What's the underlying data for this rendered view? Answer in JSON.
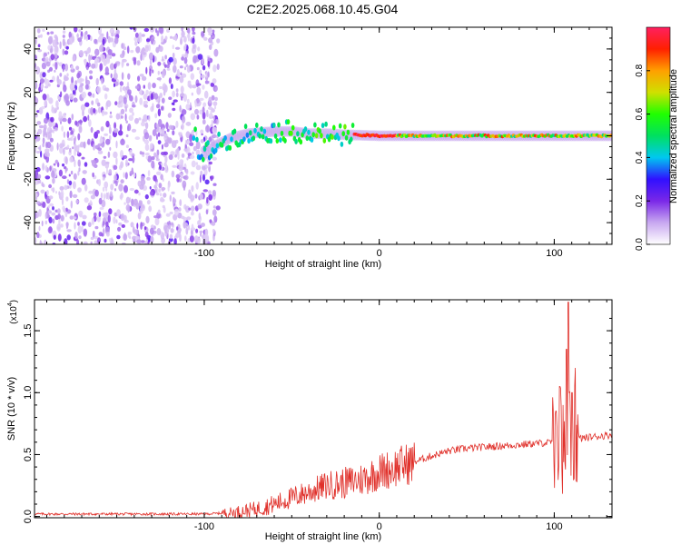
{
  "title": "C2E2.2025.068.10.45.G04",
  "chart_data": [
    {
      "type": "heatmap",
      "xlabel": "Height of straight line (km)",
      "ylabel": "Frequency (Hz)",
      "xlim": [
        -197,
        133
      ],
      "ylim": [
        -50,
        50
      ],
      "x_ticks": [
        -100,
        0,
        100
      ],
      "y_ticks": [
        -40,
        -20,
        0,
        20,
        40
      ],
      "colorbar": {
        "label": "Normalized spectral amplitude",
        "range": [
          0.0,
          1.0
        ],
        "ticks": [
          0.0,
          0.2,
          0.4,
          0.6,
          0.8
        ],
        "colors": [
          "#ffffff",
          "#c8a8f0",
          "#7a28e8",
          "#3010ff",
          "#00c8f0",
          "#00e060",
          "#20ff00",
          "#d0e000",
          "#ffa000",
          "#ff2000",
          "#ff2060"
        ]
      },
      "signal_track": [
        {
          "x": -104,
          "f": -12
        },
        {
          "x": -95,
          "f": -5
        },
        {
          "x": -85,
          "f": -1
        },
        {
          "x": -75,
          "f": 1
        },
        {
          "x": -60,
          "f": 2
        },
        {
          "x": -50,
          "f": 2
        },
        {
          "x": -40,
          "f": 1
        },
        {
          "x": -30,
          "f": 1
        },
        {
          "x": -20,
          "f": 0.5
        },
        {
          "x": 0,
          "f": 0
        },
        {
          "x": 20,
          "f": 0
        },
        {
          "x": 60,
          "f": 0
        },
        {
          "x": 100,
          "f": 0
        },
        {
          "x": 133,
          "f": 0
        }
      ]
    },
    {
      "type": "line",
      "xlabel": "Height of straight line (km)",
      "ylabel": "SNR (10 * v/v)",
      "y_multiplier": "(x10",
      "y_exponent": "4",
      "xlim": [
        -197,
        133
      ],
      "ylim": [
        -0.01,
        1.75
      ],
      "x_ticks": [
        -100,
        0,
        100
      ],
      "y_ticks": [
        0.0,
        0.5,
        1.0,
        1.5
      ],
      "color": "#e0302a",
      "series": [
        {
          "values": [
            {
              "x": -197,
              "y": 0.02
            },
            {
              "x": -140,
              "y": 0.02
            },
            {
              "x": -100,
              "y": 0.02
            },
            {
              "x": -85,
              "y": 0.03
            },
            {
              "x": -70,
              "y": 0.06
            },
            {
              "x": -60,
              "y": 0.1
            },
            {
              "x": -50,
              "y": 0.15
            },
            {
              "x": -40,
              "y": 0.2
            },
            {
              "x": -30,
              "y": 0.25
            },
            {
              "x": -20,
              "y": 0.27
            },
            {
              "x": -10,
              "y": 0.3
            },
            {
              "x": 0,
              "y": 0.36
            },
            {
              "x": 10,
              "y": 0.4
            },
            {
              "x": 20,
              "y": 0.44
            },
            {
              "x": 30,
              "y": 0.49
            },
            {
              "x": 40,
              "y": 0.53
            },
            {
              "x": 50,
              "y": 0.55
            },
            {
              "x": 60,
              "y": 0.56
            },
            {
              "x": 70,
              "y": 0.57
            },
            {
              "x": 80,
              "y": 0.58
            },
            {
              "x": 90,
              "y": 0.59
            },
            {
              "x": 100,
              "y": 0.6
            },
            {
              "x": 110,
              "y": 0.62
            },
            {
              "x": 120,
              "y": 0.64
            },
            {
              "x": 133,
              "y": 0.66
            }
          ],
          "spikes": [
            {
              "x": 101,
              "y": 0.85
            },
            {
              "x": 103,
              "y": 1.05
            },
            {
              "x": 105,
              "y": 0.9
            },
            {
              "x": 107,
              "y": 1.35
            },
            {
              "x": 108,
              "y": 1.73
            },
            {
              "x": 110,
              "y": 1.0
            },
            {
              "x": 112,
              "y": 1.2
            }
          ]
        }
      ]
    }
  ]
}
